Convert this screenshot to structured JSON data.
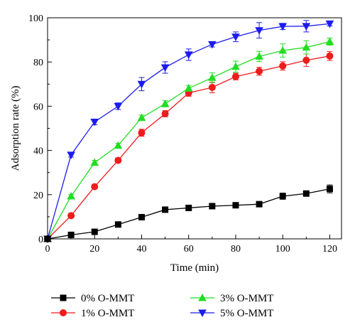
{
  "chart_data": {
    "type": "line",
    "title": "",
    "xlabel": "Time (min)",
    "ylabel": "Adsorption rate (%)",
    "xlim": [
      0,
      125
    ],
    "ylim": [
      0,
      100
    ],
    "xticks": [
      "0",
      "20",
      "40",
      "60",
      "80",
      "100",
      "120"
    ],
    "yticks": [
      "0",
      "20",
      "40",
      "60",
      "80",
      "100"
    ],
    "grid": false,
    "legend_position": "bottom",
    "x": [
      0,
      10,
      20,
      30,
      40,
      50,
      60,
      70,
      80,
      90,
      100,
      110,
      120
    ],
    "series": [
      {
        "name": "0% O-MMT",
        "color": "#000000",
        "marker": "square",
        "values": [
          0,
          1.8,
          3.2,
          6.5,
          9.8,
          13.2,
          14.0,
          14.8,
          15.2,
          15.7,
          19.3,
          20.5,
          22.6
        ],
        "errors": [
          0.3,
          0.4,
          0.5,
          0.6,
          0.6,
          0.8,
          0.7,
          0.7,
          0.7,
          0.8,
          1.4,
          1.2,
          1.8
        ]
      },
      {
        "name": "1% O-MMT",
        "color": "#ee1c1c",
        "marker": "circle",
        "values": [
          0,
          10.5,
          23.6,
          35.5,
          48.0,
          56.6,
          66.0,
          68.5,
          73.4,
          75.8,
          78.2,
          80.8,
          82.7
        ],
        "errors": [
          0.5,
          0.7,
          0.9,
          1.0,
          1.6,
          1.4,
          1.5,
          2.4,
          1.5,
          1.8,
          1.9,
          2.8,
          2.0
        ]
      },
      {
        "name": "3% O-MMT",
        "color": "#22dd22",
        "marker": "triangle-up",
        "values": [
          0,
          19.3,
          34.5,
          42.2,
          54.8,
          61.1,
          68.1,
          72.9,
          77.9,
          82.5,
          85.2,
          86.6,
          89.2
        ],
        "errors": [
          0.5,
          0.7,
          1.0,
          1.0,
          1.2,
          1.4,
          1.3,
          2.2,
          2.5,
          2.3,
          3.0,
          3.0,
          1.6
        ]
      },
      {
        "name": "5% O-MMT",
        "color": "#1c1cee",
        "marker": "triangle-down",
        "values": [
          0,
          38.0,
          52.9,
          60.0,
          70.0,
          77.5,
          83.3,
          88.0,
          91.4,
          94.3,
          96.1,
          96.2,
          97.3
        ],
        "errors": [
          0.5,
          1.0,
          1.3,
          1.5,
          3.0,
          2.6,
          2.6,
          1.2,
          2.2,
          3.5,
          1.4,
          2.6,
          1.0
        ]
      }
    ]
  }
}
